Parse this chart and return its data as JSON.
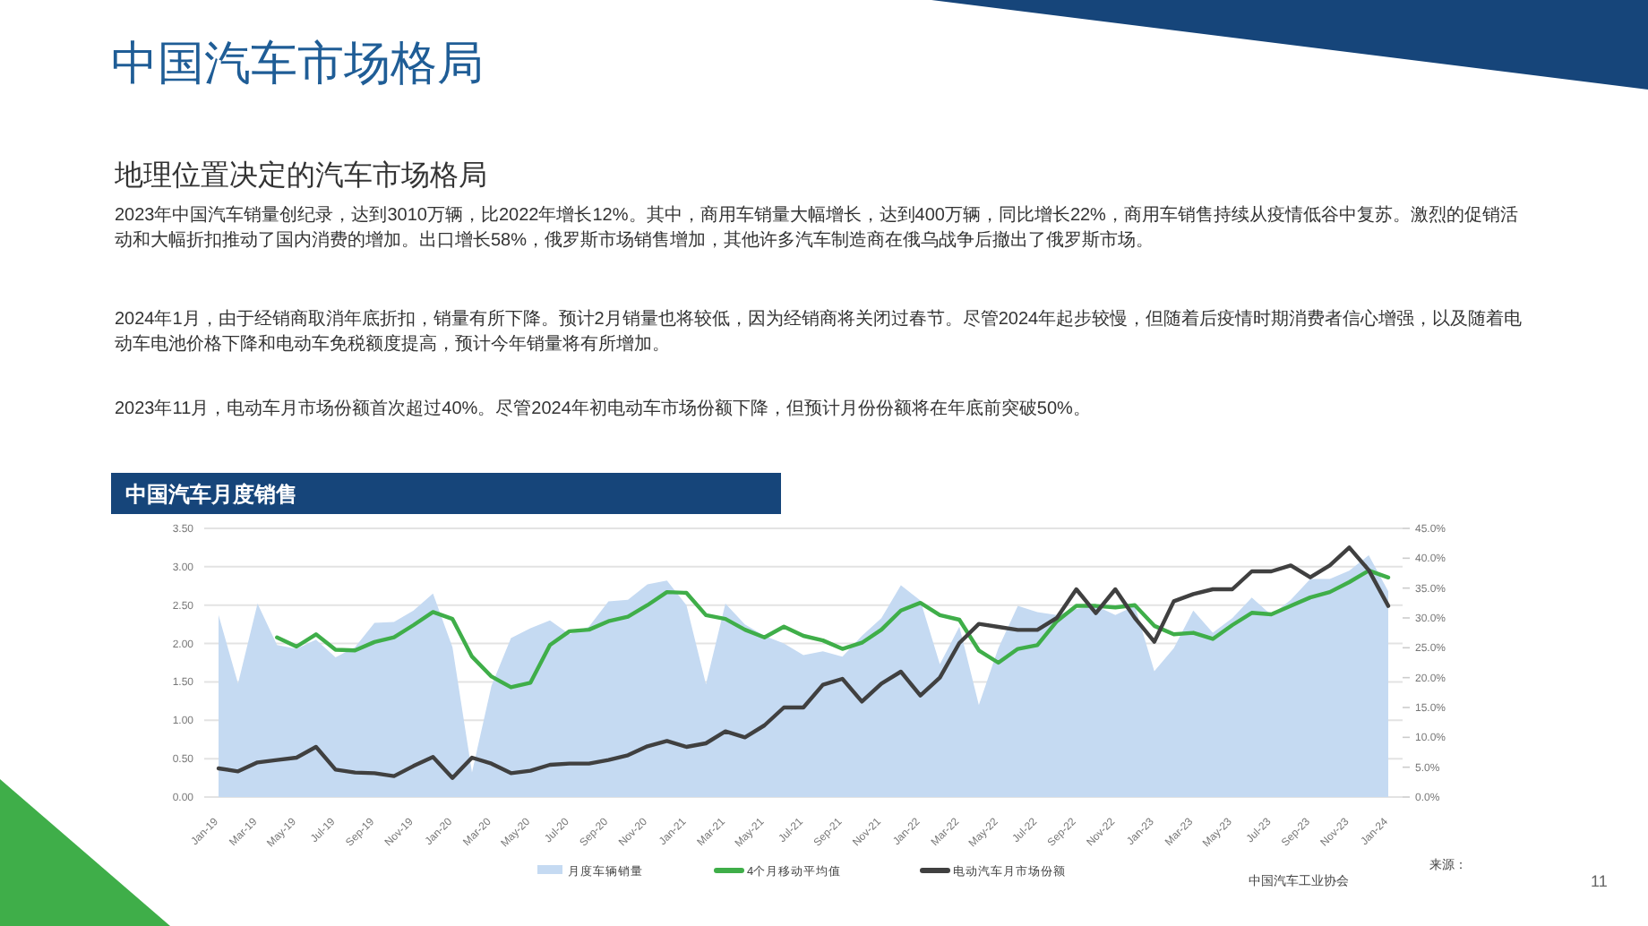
{
  "chart_data": {
    "type": "area",
    "title": "中国汽车市场格局",
    "subtitle": "地理位置决定的汽车市场格局",
    "annotations": [
      "2023年中国汽车销量创纪录，达到3010万辆，比2022年增长12%。其中，商用车销量大幅增长，达到400万辆，同比增长22%，商用车销售持续从疫情低谷中复苏。激烈的促销活动和大幅折扣推动了国内消费的增加。出口增长58%，俄罗斯市场销售增加，其他许多汽车制造商在俄乌战争后撤出了俄罗斯市场。",
      "2024年1月，由于经销商取消年底折扣，销量有所下降。预计2月销量也将较低，因为经销商将关闭过春节。尽管2024年起步较慢，但随着后疫情时期消费者信心增强，以及随着电动车电池价格下降和电动车免税额度提高，预计今年销量将有所增加。",
      "2023年11月，电动车月市场份额首次超过40%。尽管2024年初电动车市场份额下降，但预计月份份额将在年底前突破50%。",
      "中国汽车月度销售",
      "来源：",
      "中国汽车工业协会",
      "11"
    ],
    "categories": [
      "Jan-19",
      null,
      "Mar-19",
      null,
      "May-19",
      null,
      "Jul-19",
      null,
      "Sep-19",
      null,
      "Nov-19",
      null,
      "Jan-20",
      null,
      "Mar-20",
      null,
      "May-20",
      null,
      "Jul-20",
      null,
      "Sep-20",
      null,
      "Nov-20",
      null,
      "Jan-21",
      null,
      "Mar-21",
      null,
      "May-21",
      null,
      "Jul-21",
      null,
      "Sep-21",
      null,
      "Nov-21",
      null,
      "Jan-22",
      null,
      "Mar-22",
      null,
      "May-22",
      null,
      "Jul-22",
      null,
      "Sep-22",
      null,
      "Nov-22",
      null,
      "Jan-23",
      null,
      "Mar-23",
      null,
      "May-23",
      null,
      "Jul-23",
      null,
      "Sep-23",
      null,
      "Nov-23",
      null,
      "Jan-24"
    ],
    "series": [
      {
        "name": "月度车辆销量",
        "type": "area",
        "color": "#c5daf2",
        "values": [
          2.37,
          1.48,
          2.52,
          1.98,
          1.93,
          2.05,
          1.82,
          1.95,
          2.27,
          2.28,
          2.43,
          2.65,
          1.95,
          0.32,
          1.45,
          2.07,
          2.2,
          2.3,
          2.12,
          2.22,
          2.55,
          2.57,
          2.77,
          2.82,
          2.5,
          1.47,
          2.52,
          2.25,
          2.1,
          2.0,
          1.85,
          1.9,
          1.83,
          2.1,
          2.33,
          2.76,
          2.56,
          1.73,
          2.22,
          1.2,
          1.94,
          2.49,
          2.41,
          2.37,
          2.45,
          2.49,
          2.37,
          2.49,
          1.64,
          1.94,
          2.43,
          2.14,
          2.33,
          2.6,
          2.37,
          2.57,
          2.84,
          2.84,
          2.95,
          3.15,
          2.68
        ]
      },
      {
        "name": "4个月移动平均值",
        "type": "line",
        "color": "#3fae49",
        "values": [
          null,
          null,
          null,
          2.08,
          1.96,
          2.12,
          1.92,
          1.91,
          2.02,
          2.08,
          2.24,
          2.41,
          2.32,
          1.83,
          1.57,
          1.43,
          1.49,
          1.98,
          2.16,
          2.18,
          2.29,
          2.35,
          2.5,
          2.67,
          2.66,
          2.37,
          2.32,
          2.18,
          2.08,
          2.22,
          2.1,
          2.04,
          1.93,
          2.01,
          2.18,
          2.43,
          2.53,
          2.37,
          2.31,
          1.91,
          1.75,
          1.93,
          1.98,
          2.29,
          2.49,
          2.49,
          2.47,
          2.5,
          2.23,
          2.12,
          2.14,
          2.06,
          2.24,
          2.4,
          2.38,
          2.49,
          2.6,
          2.67,
          2.8,
          2.95,
          2.86
        ]
      },
      {
        "name": "电动汽车月市场份额",
        "type": "line",
        "axis": "y2",
        "color": "#404040",
        "values": [
          4.8,
          4.3,
          5.8,
          6.2,
          6.6,
          8.4,
          4.6,
          4.1,
          4.0,
          3.5,
          5.2,
          6.7,
          3.2,
          6.6,
          5.6,
          4.0,
          4.4,
          5.4,
          5.6,
          5.6,
          6.2,
          7.0,
          8.5,
          9.4,
          8.4,
          9.0,
          11.0,
          10.0,
          12.0,
          15.0,
          15.0,
          18.8,
          19.8,
          16.0,
          19.0,
          21.0,
          17.0,
          20.0,
          25.8,
          29.0,
          28.5,
          28.0,
          28.0,
          30.0,
          34.8,
          30.8,
          34.8,
          30.0,
          26.0,
          32.8,
          34.0,
          34.8,
          34.8,
          37.8,
          37.8,
          38.8,
          36.8,
          38.8,
          41.8,
          38.0,
          32.0
        ]
      }
    ],
    "ylim": [
      0,
      3.5
    ],
    "yticks": [
      {
        "value": 0,
        "label": "0.00"
      },
      {
        "value": 0.5,
        "label": "0.50"
      },
      {
        "value": 1,
        "label": "1.00"
      },
      {
        "value": 1.5,
        "label": "1.50"
      },
      {
        "value": 2,
        "label": "2.00"
      },
      {
        "value": 2.5,
        "label": "2.50"
      },
      {
        "value": 3,
        "label": "3.00"
      },
      {
        "value": 3.5,
        "label": "3.50"
      }
    ],
    "y2lim": [
      0,
      45
    ],
    "y2ticks": [
      {
        "value": 0,
        "label": "0.0%"
      },
      {
        "value": 5,
        "label": "5.0%"
      },
      {
        "value": 10,
        "label": "10.0%"
      },
      {
        "value": 15,
        "label": "15.0%"
      },
      {
        "value": 20,
        "label": "20.0%"
      },
      {
        "value": 25,
        "label": "25.0%"
      },
      {
        "value": 30,
        "label": "30.0%"
      },
      {
        "value": 35,
        "label": "35.0%"
      },
      {
        "value": 40,
        "label": "40.0%"
      },
      {
        "value": 45,
        "label": "45.0%"
      }
    ],
    "grid": "y",
    "legend": "bottom",
    "line_style": "solid",
    "marker": "none"
  }
}
